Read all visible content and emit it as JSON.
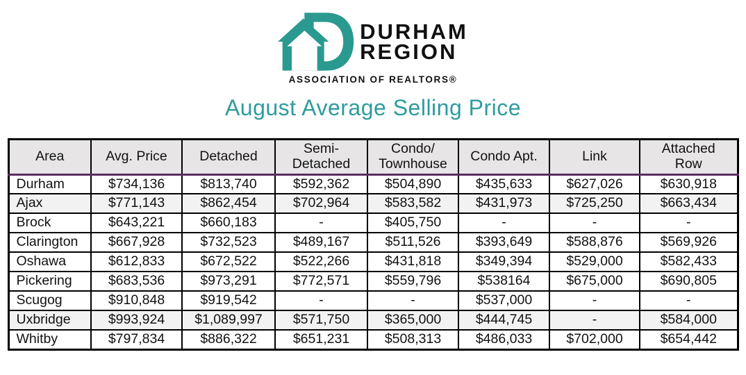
{
  "logo": {
    "title_line1": "DURHAM",
    "title_line2": "REGION",
    "subtitle": "ASSOCIATION OF REALTORS®",
    "icon": "house-with-letter-d"
  },
  "page": {
    "title": "August Average Selling Price"
  },
  "colors": {
    "teal": "#2A9A90",
    "title_teal": "#2F9C9E",
    "header_bg": "#E7E5E6",
    "highlight_row_bg": "#F2F2F2",
    "header_rule_purple": "#5B2D62",
    "border_black": "#000000"
  },
  "table": {
    "columns": [
      "Area",
      "Avg. Price",
      "Detached",
      "Semi-\nDetached",
      "Condo/\nTownhouse",
      "Condo Apt.",
      "Link",
      "Attached\nRow"
    ],
    "rows": [
      {
        "area": "Durham",
        "highlight": false,
        "values": [
          "$734,136",
          "$813,740",
          "$592,362",
          "$504,890",
          "$435,633",
          "$627,026",
          "$630,918"
        ]
      },
      {
        "area": "Ajax",
        "highlight": true,
        "values": [
          "$771,143",
          "$862,454",
          "$702,964",
          "$583,582",
          "$431,973",
          "$725,250",
          "$663,434"
        ]
      },
      {
        "area": "Brock",
        "highlight": false,
        "values": [
          "$643,221",
          "$660,183",
          "-",
          "$405,750",
          "-",
          "-",
          "-"
        ]
      },
      {
        "area": "Clarington",
        "highlight": false,
        "values": [
          "$667,928",
          "$732,523",
          "$489,167",
          "$511,526",
          "$393,649",
          "$588,876",
          "$569,926"
        ]
      },
      {
        "area": "Oshawa",
        "highlight": false,
        "values": [
          "$612,833",
          "$672,522",
          "$522,266",
          "$431,818",
          "$349,394",
          "$529,000",
          "$582,433"
        ]
      },
      {
        "area": "Pickering",
        "highlight": false,
        "values": [
          "$683,536",
          "$973,291",
          "$772,571",
          "$559,796",
          "$538164",
          "$675,000",
          "$690,805"
        ]
      },
      {
        "area": "Scugog",
        "highlight": false,
        "values": [
          "$910,848",
          "$919,542",
          "-",
          "-",
          "$537,000",
          "-",
          "-"
        ]
      },
      {
        "area": "Uxbridge",
        "highlight": true,
        "values": [
          "$993,924",
          "$1,089,997",
          "$571,750",
          "$365,000",
          "$444,745",
          "-",
          "$584,000"
        ]
      },
      {
        "area": "Whitby",
        "highlight": false,
        "values": [
          "$797,834",
          "$886,322",
          "$651,231",
          "$508,313",
          "$486,033",
          "$702,000",
          "$654,442"
        ]
      }
    ]
  }
}
